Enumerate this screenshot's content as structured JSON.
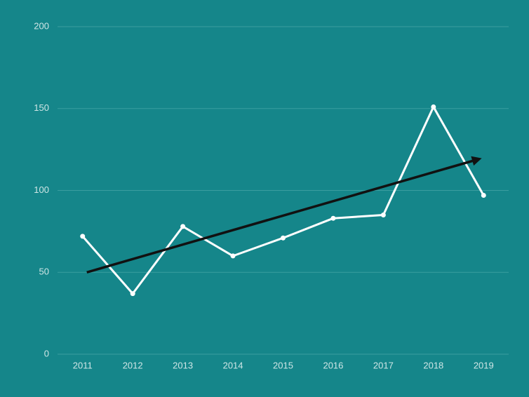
{
  "chart_data": {
    "type": "line",
    "categories": [
      "2011",
      "2012",
      "2013",
      "2014",
      "2015",
      "2016",
      "2017",
      "2018",
      "2019"
    ],
    "values": [
      72,
      37,
      78,
      60,
      71,
      83,
      85,
      151,
      97
    ],
    "color": "#ffffff",
    "ylim": [
      0,
      200
    ],
    "yticks": [
      0,
      50,
      100,
      150,
      200
    ],
    "grid": true,
    "trend": {
      "color": "#111111",
      "start": 50,
      "end": 119
    }
  }
}
